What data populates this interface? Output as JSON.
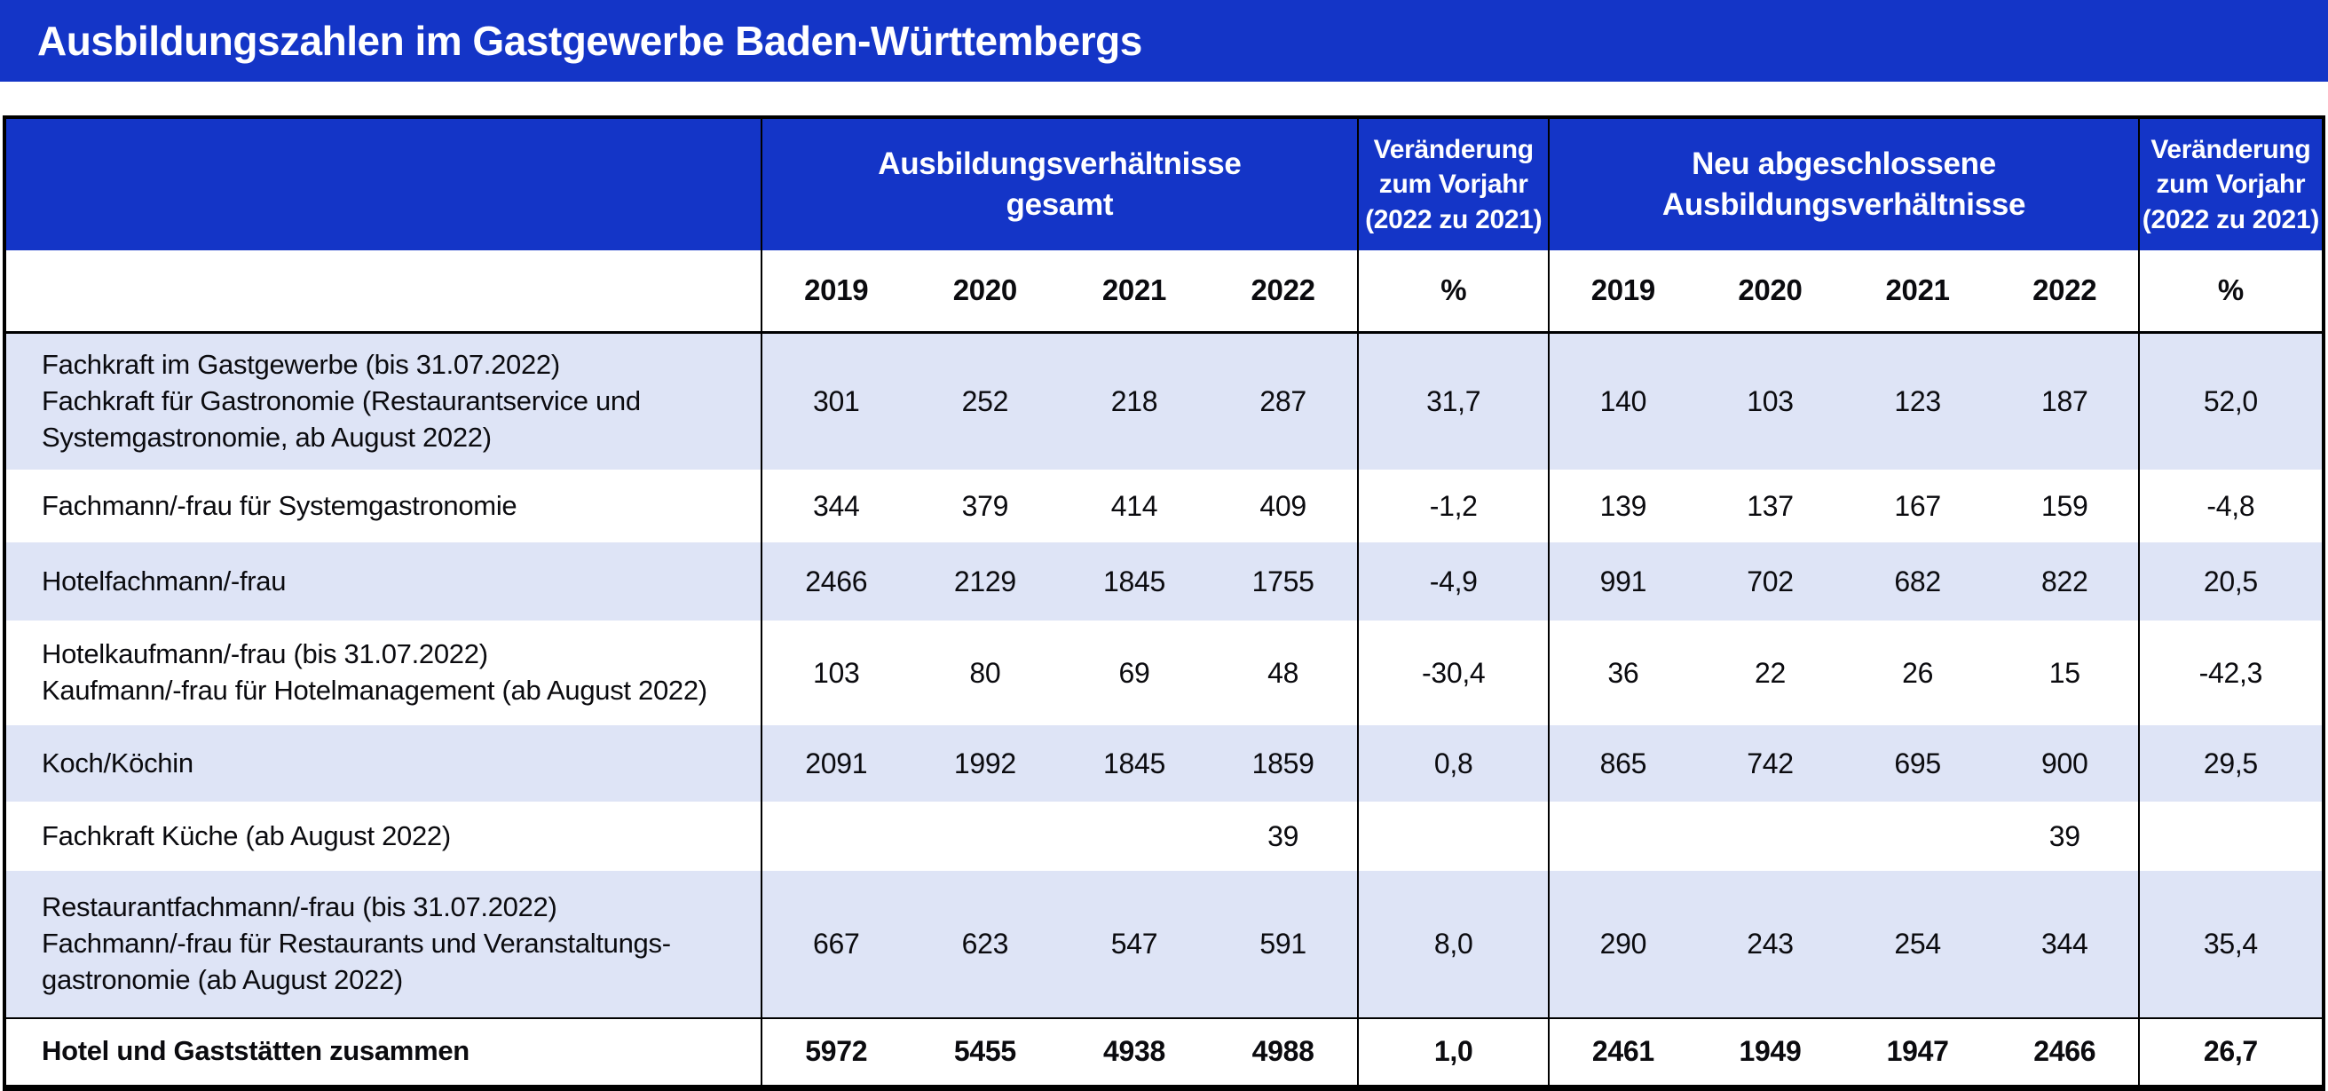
{
  "header": {
    "title": "Ausbildungszahlen im Gastgewerbe Baden-Württembergs"
  },
  "colors": {
    "header_blue": "#1435c7",
    "row_shade": "#dee4f6",
    "border_black": "#000000",
    "title_text": "#ffffff"
  },
  "table": {
    "group_headers": {
      "gesamt": "Ausbildungsverhältnisse\ngesamt",
      "change1": "Veränderung\nzum Vorjahr\n(2022 zu 2021)",
      "neu": "Neu abgeschlossene\nAusbildungsverhältnisse",
      "change2": "Veränderung\nzum Vorjahr\n(2022 zu 2021)"
    },
    "years": [
      "2019",
      "2020",
      "2021",
      "2022"
    ],
    "percent": "%",
    "rows": [
      {
        "label": "Fachkraft im Gastgewerbe (bis 31.07.2022)\nFachkraft für Gastronomie (Restaurantservice und\nSystemgastronomie, ab August 2022)",
        "gesamt": [
          "301",
          "252",
          "218",
          "287"
        ],
        "change": "31,7",
        "neu": [
          "140",
          "103",
          "123",
          "187"
        ],
        "change2": "52,0"
      },
      {
        "label": "Fachmann/-frau für Systemgastronomie",
        "gesamt": [
          "344",
          "379",
          "414",
          "409"
        ],
        "change": "-1,2",
        "neu": [
          "139",
          "137",
          "167",
          "159"
        ],
        "change2": "-4,8"
      },
      {
        "label": "Hotelfachmann/-frau",
        "gesamt": [
          "2466",
          "2129",
          "1845",
          "1755"
        ],
        "change": "-4,9",
        "neu": [
          "991",
          "702",
          "682",
          "822"
        ],
        "change2": "20,5"
      },
      {
        "label": "Hotelkaufmann/-frau (bis 31.07.2022)\nKaufmann/-frau für Hotelmanagement (ab August 2022)",
        "gesamt": [
          "103",
          "80",
          "69",
          "48"
        ],
        "change": "-30,4",
        "neu": [
          "36",
          "22",
          "26",
          "15"
        ],
        "change2": "-42,3"
      },
      {
        "label": "Koch/Köchin",
        "gesamt": [
          "2091",
          "1992",
          "1845",
          "1859"
        ],
        "change": "0,8",
        "neu": [
          "865",
          "742",
          "695",
          "900"
        ],
        "change2": "29,5"
      },
      {
        "label": "Fachkraft Küche (ab August 2022)",
        "gesamt": [
          "",
          "",
          "",
          "39"
        ],
        "change": "",
        "neu": [
          "",
          "",
          "",
          "39"
        ],
        "change2": ""
      },
      {
        "label": "Restaurantfachmann/-frau (bis 31.07.2022)\nFachmann/-frau für Restaurants und Veranstaltungs-\ngastronomie (ab August 2022)",
        "gesamt": [
          "667",
          "623",
          "547",
          "591"
        ],
        "change": "8,0",
        "neu": [
          "290",
          "243",
          "254",
          "344"
        ],
        "change2": "35,4"
      }
    ],
    "total": {
      "label": "Hotel und Gaststätten zusammen",
      "gesamt": [
        "5972",
        "5455",
        "4938",
        "4988"
      ],
      "change": "1,0",
      "neu": [
        "2461",
        "1949",
        "1947",
        "2466"
      ],
      "change2": "26,7"
    }
  },
  "chart_data": {
    "type": "table",
    "title": "Ausbildungszahlen im Gastgewerbe Baden-Württembergs",
    "column_groups": [
      "Ausbildungsverhältnisse gesamt",
      "Veränderung zum Vorjahr (2022 zu 2021) %",
      "Neu abgeschlossene Ausbildungsverhältnisse",
      "Veränderung zum Vorjahr (2022 zu 2021) %"
    ],
    "years": [
      2019,
      2020,
      2021,
      2022
    ],
    "rows": [
      {
        "occupation": "Fachkraft im Gastgewerbe (bis 31.07.2022) / Fachkraft für Gastronomie (Restaurantservice und Systemgastronomie, ab August 2022)",
        "gesamt": [
          301,
          252,
          218,
          287
        ],
        "veraenderung_gesamt": 31.7,
        "neu": [
          140,
          103,
          123,
          187
        ],
        "veraenderung_neu": 52.0
      },
      {
        "occupation": "Fachmann/-frau für Systemgastronomie",
        "gesamt": [
          344,
          379,
          414,
          409
        ],
        "veraenderung_gesamt": -1.2,
        "neu": [
          139,
          137,
          167,
          159
        ],
        "veraenderung_neu": -4.8
      },
      {
        "occupation": "Hotelfachmann/-frau",
        "gesamt": [
          2466,
          2129,
          1845,
          1755
        ],
        "veraenderung_gesamt": -4.9,
        "neu": [
          991,
          702,
          682,
          822
        ],
        "veraenderung_neu": 20.5
      },
      {
        "occupation": "Hotelkaufmann/-frau (bis 31.07.2022) / Kaufmann/-frau für Hotelmanagement (ab August 2022)",
        "gesamt": [
          103,
          80,
          69,
          48
        ],
        "veraenderung_gesamt": -30.4,
        "neu": [
          36,
          22,
          26,
          15
        ],
        "veraenderung_neu": -42.3
      },
      {
        "occupation": "Koch/Köchin",
        "gesamt": [
          2091,
          1992,
          1845,
          1859
        ],
        "veraenderung_gesamt": 0.8,
        "neu": [
          865,
          742,
          695,
          900
        ],
        "veraenderung_neu": 29.5
      },
      {
        "occupation": "Fachkraft Küche (ab August 2022)",
        "gesamt": [
          null,
          null,
          null,
          39
        ],
        "veraenderung_gesamt": null,
        "neu": [
          null,
          null,
          null,
          39
        ],
        "veraenderung_neu": null
      },
      {
        "occupation": "Restaurantfachmann/-frau (bis 31.07.2022) / Fachmann/-frau für Restaurants und Veranstaltungsgastronomie (ab August 2022)",
        "gesamt": [
          667,
          623,
          547,
          591
        ],
        "veraenderung_gesamt": 8.0,
        "neu": [
          290,
          243,
          254,
          344
        ],
        "veraenderung_neu": 35.4
      },
      {
        "occupation": "Hotel und Gaststätten zusammen",
        "gesamt": [
          5972,
          5455,
          4938,
          4988
        ],
        "veraenderung_gesamt": 1.0,
        "neu": [
          2461,
          1949,
          1947,
          2466
        ],
        "veraenderung_neu": 26.7
      }
    ]
  }
}
